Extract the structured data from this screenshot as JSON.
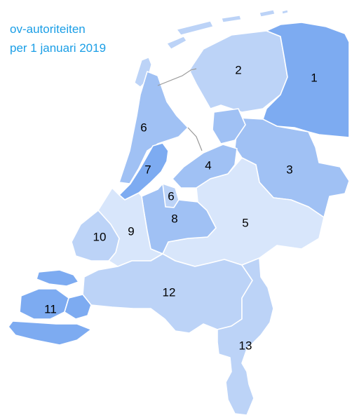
{
  "title": {
    "line1": "ov-autoriteiten",
    "line2": "per 1 januari 2019"
  },
  "colors": {
    "light": "#d8e6fb",
    "mid": "#bcd3f7",
    "medium": "#a0c1f4",
    "strong": "#7dabf1",
    "title": "#1a9ee6"
  },
  "regions": [
    {
      "id": "r1",
      "label": "1",
      "shade": "strong"
    },
    {
      "id": "r2",
      "label": "2",
      "shade": "mid"
    },
    {
      "id": "r3",
      "label": "3",
      "shade": "medium"
    },
    {
      "id": "r4",
      "label": "4",
      "shade": "medium"
    },
    {
      "id": "r5",
      "label": "5",
      "shade": "light"
    },
    {
      "id": "r6n",
      "label": "6",
      "shade": "medium"
    },
    {
      "id": "r6s",
      "label": "6",
      "shade": "mid"
    },
    {
      "id": "r7",
      "label": "7",
      "shade": "strong"
    },
    {
      "id": "r8",
      "label": "8",
      "shade": "medium"
    },
    {
      "id": "r9",
      "label": "9",
      "shade": "light"
    },
    {
      "id": "r10",
      "label": "10",
      "shade": "mid"
    },
    {
      "id": "r11",
      "label": "11",
      "shade": "strong"
    },
    {
      "id": "r12",
      "label": "12",
      "shade": "mid"
    },
    {
      "id": "r13",
      "label": "13",
      "shade": "mid"
    }
  ]
}
